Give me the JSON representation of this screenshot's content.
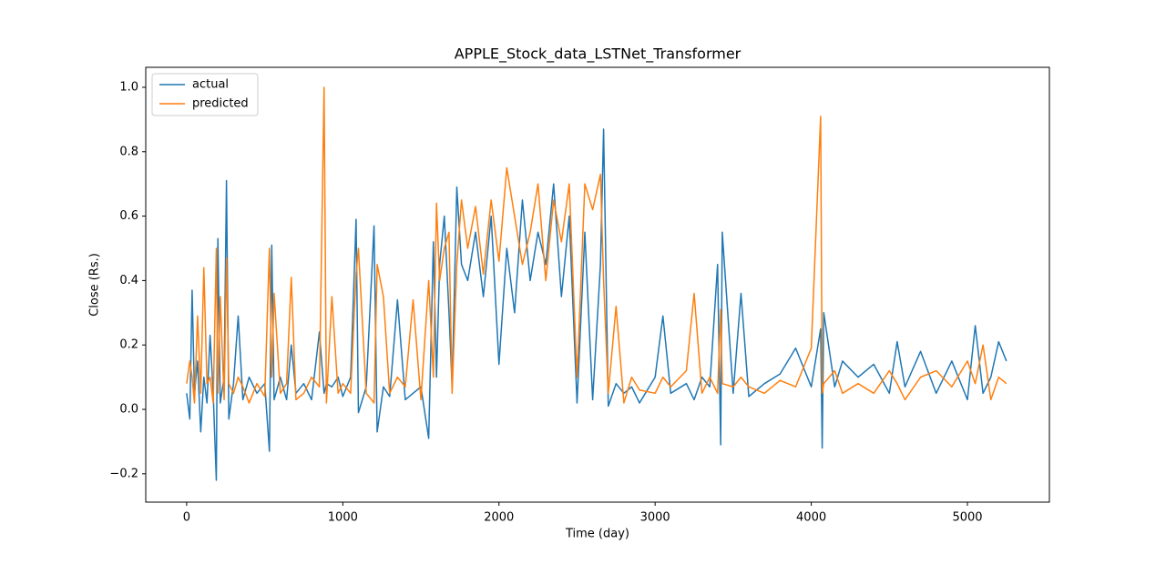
{
  "chart_data": {
    "type": "line",
    "title": "APPLE_Stock_data_LSTNet_Transformer",
    "x_label": "Time (day)",
    "y_label": "Close (Rs.)",
    "x": [
      0,
      20,
      35,
      50,
      70,
      90,
      110,
      130,
      150,
      170,
      190,
      200,
      215,
      240,
      255,
      270,
      300,
      330,
      360,
      400,
      450,
      500,
      530,
      545,
      560,
      600,
      640,
      670,
      700,
      750,
      800,
      850,
      880,
      895,
      930,
      970,
      1000,
      1050,
      1085,
      1100,
      1150,
      1200,
      1220,
      1260,
      1300,
      1350,
      1400,
      1450,
      1500,
      1550,
      1580,
      1600,
      1620,
      1650,
      1680,
      1700,
      1730,
      1760,
      1800,
      1850,
      1900,
      1950,
      2000,
      2050,
      2100,
      2150,
      2200,
      2250,
      2300,
      2350,
      2400,
      2450,
      2500,
      2550,
      2600,
      2650,
      2670,
      2700,
      2750,
      2800,
      2850,
      2900,
      3000,
      3050,
      3100,
      3200,
      3250,
      3300,
      3350,
      3400,
      3420,
      3430,
      3500,
      3550,
      3600,
      3700,
      3800,
      3900,
      4000,
      4060,
      4070,
      4080,
      4150,
      4200,
      4300,
      4400,
      4500,
      4550,
      4600,
      4700,
      4800,
      4900,
      5000,
      5050,
      5100,
      5150,
      5200,
      5250
    ],
    "series": [
      {
        "name": "actual",
        "color": "#1f77b4",
        "values": [
          0.05,
          -0.03,
          0.37,
          0.05,
          0.15,
          -0.07,
          0.1,
          0.02,
          0.23,
          0.05,
          -0.22,
          0.53,
          0.02,
          0.1,
          0.71,
          -0.03,
          0.08,
          0.29,
          0.03,
          0.1,
          0.05,
          0.08,
          -0.13,
          0.51,
          0.03,
          0.1,
          0.03,
          0.2,
          0.05,
          0.08,
          0.03,
          0.24,
          0.05,
          0.08,
          0.07,
          0.1,
          0.04,
          0.1,
          0.59,
          -0.01,
          0.07,
          0.57,
          -0.07,
          0.07,
          0.04,
          0.34,
          0.03,
          0.05,
          0.07,
          -0.09,
          0.52,
          0.1,
          0.45,
          0.6,
          0.3,
          0.07,
          0.69,
          0.45,
          0.4,
          0.55,
          0.35,
          0.6,
          0.14,
          0.5,
          0.3,
          0.65,
          0.4,
          0.55,
          0.45,
          0.7,
          0.35,
          0.6,
          0.02,
          0.55,
          0.03,
          0.45,
          0.87,
          0.01,
          0.08,
          0.05,
          0.07,
          0.02,
          0.1,
          0.29,
          0.05,
          0.08,
          0.03,
          0.1,
          0.07,
          0.45,
          -0.11,
          0.55,
          0.05,
          0.36,
          0.04,
          0.08,
          0.11,
          0.19,
          0.07,
          0.25,
          -0.12,
          0.3,
          0.07,
          0.15,
          0.1,
          0.14,
          0.05,
          0.21,
          0.07,
          0.18,
          0.05,
          0.15,
          0.03,
          0.26,
          0.05,
          0.1,
          0.21,
          0.15
        ]
      },
      {
        "name": "predicted",
        "color": "#ff7f0e",
        "values": [
          0.08,
          0.15,
          0.1,
          0.02,
          0.29,
          0.05,
          0.44,
          0.08,
          0.1,
          0.02,
          0.5,
          0.05,
          0.35,
          0.03,
          0.47,
          0.08,
          0.05,
          0.1,
          0.07,
          0.02,
          0.08,
          0.04,
          0.5,
          0.1,
          0.36,
          0.05,
          0.08,
          0.41,
          0.03,
          0.05,
          0.1,
          0.07,
          1.0,
          0.02,
          0.35,
          0.05,
          0.08,
          0.05,
          0.42,
          0.5,
          0.05,
          0.02,
          0.45,
          0.35,
          0.05,
          0.1,
          0.07,
          0.34,
          0.03,
          0.4,
          0.1,
          0.64,
          0.4,
          0.5,
          0.55,
          0.05,
          0.45,
          0.65,
          0.5,
          0.63,
          0.42,
          0.65,
          0.46,
          0.75,
          0.6,
          0.45,
          0.55,
          0.7,
          0.4,
          0.65,
          0.52,
          0.7,
          0.1,
          0.7,
          0.62,
          0.73,
          0.4,
          0.05,
          0.32,
          0.02,
          0.1,
          0.06,
          0.05,
          0.1,
          0.07,
          0.12,
          0.36,
          0.05,
          0.1,
          0.05,
          0.31,
          0.08,
          0.07,
          0.1,
          0.07,
          0.05,
          0.09,
          0.07,
          0.19,
          0.91,
          0.05,
          0.08,
          0.12,
          0.05,
          0.08,
          0.05,
          0.12,
          0.08,
          0.03,
          0.1,
          0.12,
          0.07,
          0.15,
          0.08,
          0.2,
          0.03,
          0.1,
          0.08
        ]
      }
    ],
    "xlim": [
      -262,
      5525
    ],
    "ylim": [
      -0.288,
      1.062
    ],
    "xticks": [
      0,
      1000,
      2000,
      3000,
      4000,
      5000
    ],
    "yticks": [
      {
        "value": -0.2,
        "label": "−0.2"
      },
      {
        "value": 0,
        "label": "0.0"
      },
      0.2,
      0.4,
      0.6,
      0.8,
      {
        "value": 1,
        "label": "1.0"
      }
    ],
    "legend": "upper left"
  }
}
